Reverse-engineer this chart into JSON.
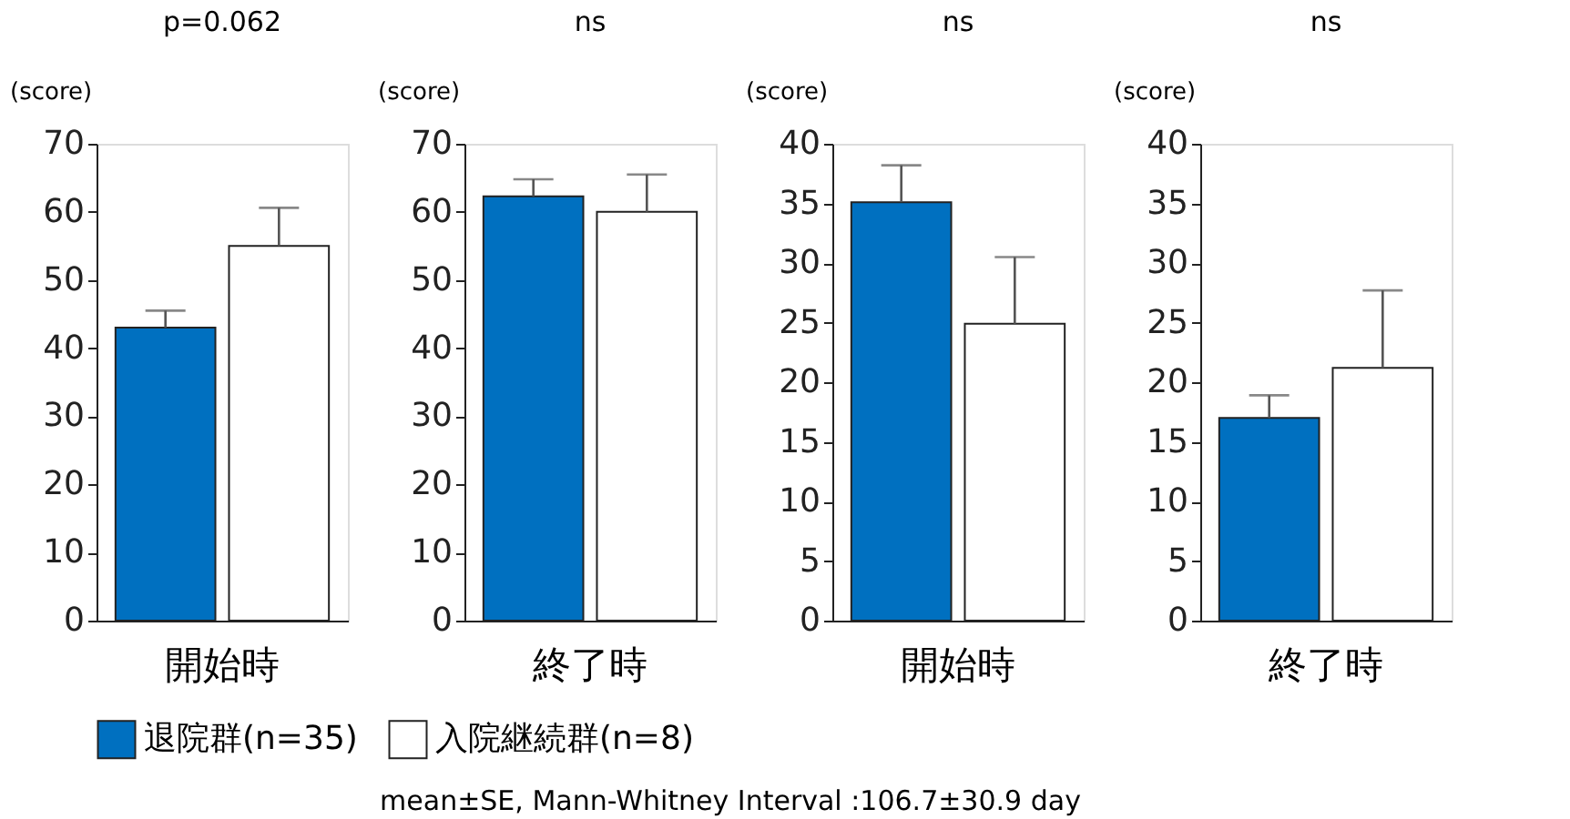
{
  "chart_data": [
    {
      "type": "bar",
      "title": "p=0.062",
      "ylabel": "(score)",
      "categories": [
        "開始時"
      ],
      "ylim": [
        0,
        70
      ],
      "yticks": [
        0,
        10,
        20,
        30,
        40,
        50,
        60,
        70
      ],
      "legend": "bottom",
      "grid": false,
      "annotations": [
        "mean±SE,  Mann-Whitney    Interval :106.7±30.9 day"
      ],
      "series": [
        {
          "name": "退院群(n=35)",
          "color": "#0070c0",
          "values": [
            43
          ],
          "errors": [
            [
              43,
              45.5
            ]
          ]
        },
        {
          "name": "入院継続群(n=8)",
          "color": "#ffffff",
          "values": [
            55
          ],
          "errors": [
            [
              55,
              60.6
            ]
          ]
        }
      ]
    },
    {
      "type": "bar",
      "title": "ns",
      "ylabel": "(score)",
      "categories": [
        "終了時"
      ],
      "ylim": [
        0,
        70
      ],
      "yticks": [
        0,
        10,
        20,
        30,
        40,
        50,
        60,
        70
      ],
      "grid": false,
      "series": [
        {
          "color": "#0070c0",
          "values": [
            62.3
          ],
          "errors": [
            [
              62.3,
              64.8
            ]
          ]
        },
        {
          "color": "#ffffff",
          "values": [
            60
          ],
          "errors": [
            [
              60,
              65.5
            ]
          ]
        }
      ]
    },
    {
      "type": "bar",
      "title": "ns",
      "ylabel": "(score)",
      "categories": [
        "開始時"
      ],
      "ylim": [
        0,
        40
      ],
      "yticks": [
        0,
        5,
        10,
        15,
        20,
        25,
        30,
        35,
        40
      ],
      "grid": false,
      "series": [
        {
          "color": "#0070c0",
          "values": [
            35.1
          ],
          "errors": [
            [
              35.1,
              38.2
            ]
          ]
        },
        {
          "color": "#ffffff",
          "values": [
            24.9
          ],
          "errors": [
            [
              24.9,
              30.5
            ]
          ]
        }
      ]
    },
    {
      "type": "bar",
      "title": "ns",
      "ylabel": "(score)",
      "categories": [
        "終了時"
      ],
      "ylim": [
        0,
        40
      ],
      "yticks": [
        0,
        5,
        10,
        15,
        20,
        25,
        30,
        35,
        40
      ],
      "grid": false,
      "series": [
        {
          "color": "#0070c0",
          "values": [
            17
          ],
          "errors": [
            [
              17,
              18.9
            ]
          ]
        },
        {
          "color": "#ffffff",
          "values": [
            21.2
          ],
          "errors": [
            [
              21.2,
              27.7
            ]
          ]
        }
      ]
    }
  ]
}
